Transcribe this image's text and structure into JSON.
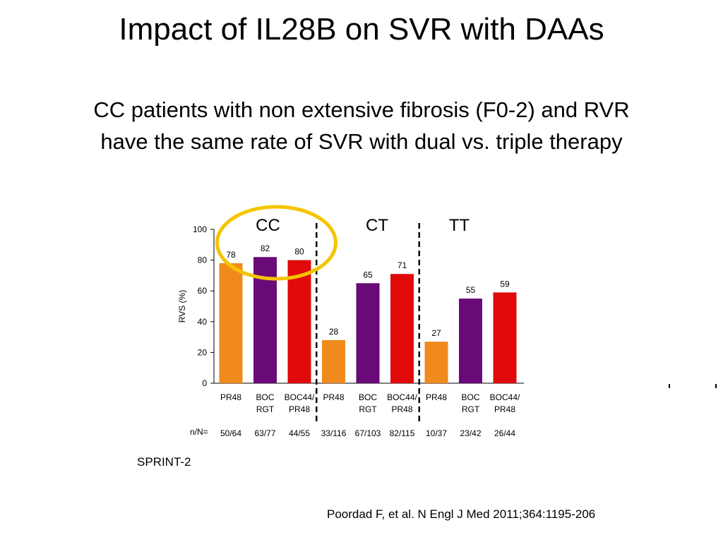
{
  "slide": {
    "title": "Impact of IL28B on SVR with DAAs",
    "subtitle_line1": "CC patients with non extensive fibrosis (F0-2) and RVR",
    "subtitle_line2": "have the same rate of SVR with dual vs. triple therapy",
    "study_label": "SPRINT-2",
    "citation": "Poordad F, et al. N Engl J Med 2011;364:1195-206"
  },
  "chart_data": {
    "type": "bar",
    "ylabel": "RVS (%)",
    "ylim": [
      0,
      100
    ],
    "yticks": [
      "0",
      "20",
      "40",
      "60",
      "80",
      "100"
    ],
    "groups": [
      "CC",
      "CT",
      "TT"
    ],
    "n_label": "n/N=",
    "categories": [
      {
        "group": "CC",
        "line1": "PR48",
        "line2": "",
        "value": 78,
        "n": "50/64",
        "color": "#f08a1c"
      },
      {
        "group": "CC",
        "line1": "BOC",
        "line2": "RGT",
        "value": 82,
        "n": "63/77",
        "color": "#6a0a78"
      },
      {
        "group": "CC",
        "line1": "BOC44/",
        "line2": "PR48",
        "value": 80,
        "n": "44/55",
        "color": "#e00a0a"
      },
      {
        "group": "CT",
        "line1": "PR48",
        "line2": "",
        "value": 28,
        "n": "33/116",
        "color": "#f08a1c"
      },
      {
        "group": "CT",
        "line1": "BOC",
        "line2": "RGT",
        "value": 65,
        "n": "67/103",
        "color": "#6a0a78"
      },
      {
        "group": "CT",
        "line1": "BOC44/",
        "line2": "PR48",
        "value": 71,
        "n": "82/115",
        "color": "#e00a0a"
      },
      {
        "group": "TT",
        "line1": "PR48",
        "line2": "",
        "value": 27,
        "n": "10/37",
        "color": "#f08a1c"
      },
      {
        "group": "TT",
        "line1": "BOC",
        "line2": "RGT",
        "value": 55,
        "n": "23/42",
        "color": "#6a0a78"
      },
      {
        "group": "TT",
        "line1": "BOC44/",
        "line2": "PR48",
        "value": 59,
        "n": "26/44",
        "color": "#e00a0a"
      }
    ],
    "highlight_color": "#f5c400",
    "grid": false,
    "legend": "none"
  }
}
